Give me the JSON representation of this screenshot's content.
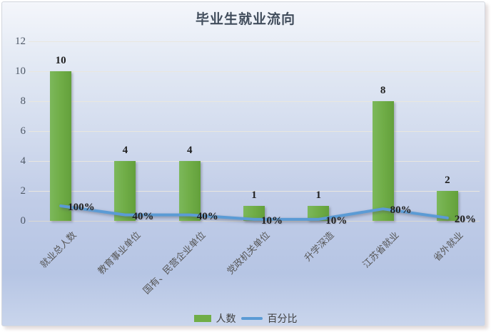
{
  "title": "毕业生就业流向",
  "legend": {
    "bar_label": "人数",
    "line_label": "百分比"
  },
  "colors": {
    "bar": "#70ad47",
    "line": "#5b9bd5",
    "title_text": "#414d5c",
    "axis_text": "#4e5866",
    "category_text": "#575757",
    "background_top": "#f4f6fb",
    "background_bottom": "#b6c5e4"
  },
  "chart_data": {
    "type": "bar",
    "subtype": "combo-bar-line",
    "title": "毕业生就业流向",
    "xlabel": "",
    "ylabel": "",
    "categories": [
      "就业总人数",
      "教育事业单位",
      "国有、民营企业单位",
      "党政机关单位",
      "升学深造",
      "江苏省就业",
      "省外就业"
    ],
    "series": [
      {
        "name": "人数",
        "type": "bar",
        "color": "#70ad47",
        "values": [
          10,
          4,
          4,
          1,
          1,
          8,
          2
        ],
        "data_labels": [
          "10",
          "4",
          "4",
          "1",
          "1",
          "8",
          "2"
        ]
      },
      {
        "name": "百分比",
        "type": "line",
        "color": "#5b9bd5",
        "values_percent": [
          100,
          40,
          40,
          10,
          10,
          80,
          20
        ],
        "data_labels": [
          "100%",
          "40%",
          "40%",
          "10%",
          "10%",
          "80%",
          "20%"
        ],
        "axis_values": [
          1.0,
          0.4,
          0.4,
          0.1,
          0.1,
          0.8,
          0.2
        ]
      }
    ],
    "ylim": [
      0,
      12
    ],
    "yticks": [
      0,
      2,
      4,
      6,
      8,
      10,
      12
    ],
    "grid": true,
    "legend_position": "bottom"
  }
}
